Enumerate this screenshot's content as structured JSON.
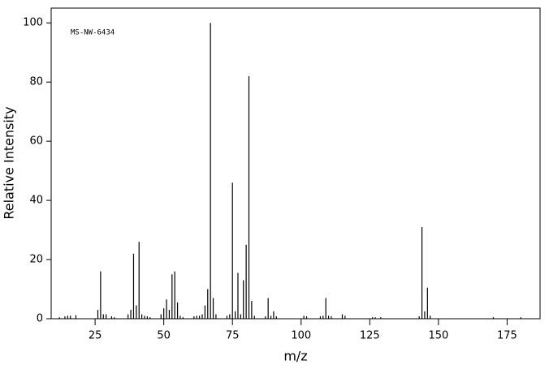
{
  "chart_data": {
    "type": "stem",
    "annotation": "MS-NW-6434",
    "x_label": "m/z",
    "y_label": "Relative Intensity",
    "color": "#000000",
    "x": [
      12,
      14,
      15,
      16,
      18,
      26,
      27,
      28,
      29,
      31,
      32,
      37,
      38,
      39,
      40,
      41,
      42,
      43,
      44,
      45,
      49,
      50,
      51,
      52,
      53,
      54,
      55,
      56,
      57,
      61,
      62,
      63,
      64,
      65,
      66,
      67,
      68,
      69,
      73,
      74,
      75,
      76,
      77,
      78,
      79,
      80,
      81,
      82,
      83,
      87,
      88,
      89,
      90,
      91,
      101,
      102,
      107,
      108,
      109,
      110,
      111,
      115,
      116,
      126,
      127,
      129,
      143,
      144,
      145,
      146,
      147,
      170,
      180
    ],
    "values": [
      0.5,
      0.8,
      1,
      1,
      1.2,
      3,
      16,
      1.5,
      1.5,
      0.8,
      0.5,
      1.5,
      3,
      22,
      4.5,
      26,
      1.5,
      1,
      0.8,
      0.5,
      1.5,
      3.5,
      6.5,
      3,
      15,
      16,
      5.5,
      1,
      0.5,
      0.8,
      1,
      1,
      1.5,
      4.5,
      10,
      100,
      7,
      1.5,
      1,
      1.5,
      46,
      2.5,
      15.5,
      1.5,
      13,
      25,
      82,
      6,
      1,
      0.8,
      7,
      1,
      2.5,
      0.8,
      1,
      0.8,
      0.8,
      1,
      7,
      1,
      0.8,
      1.5,
      1,
      0.5,
      0.5,
      0.5,
      0.8,
      31,
      2.5,
      10.5,
      1,
      0.5,
      0.5
    ],
    "xlim": [
      9,
      187
    ],
    "ylim": [
      0,
      105
    ],
    "xticks": [
      25,
      50,
      75,
      100,
      125,
      150,
      175
    ],
    "yticks": [
      0,
      20,
      40,
      60,
      80,
      100
    ]
  }
}
